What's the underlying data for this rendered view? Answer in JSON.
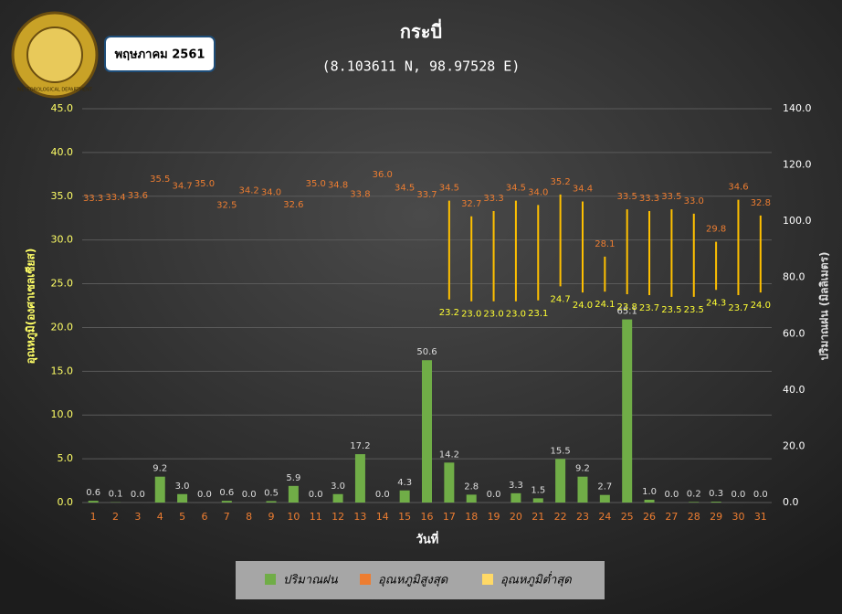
{
  "logo_text": "METEOROLOGICAL DEPARTMENT",
  "month_label": "พฤษภาคม 2561",
  "chart_data": {
    "type": "bar-hilo",
    "title": "กระบี่",
    "subtitle": "(8.103611 N, 98.97528 E)",
    "x_label": "วันที่",
    "y_label": "อุณหภูมิ(องศาเซลเซียส)",
    "y2_label": "ปริมาณฝน (มิลลิเมตร)",
    "categories": [
      "1",
      "2",
      "3",
      "4",
      "5",
      "6",
      "7",
      "8",
      "9",
      "10",
      "11",
      "12",
      "13",
      "14",
      "15",
      "16",
      "17",
      "18",
      "19",
      "20",
      "21",
      "22",
      "23",
      "24",
      "25",
      "26",
      "27",
      "28",
      "29",
      "30",
      "31"
    ],
    "ylim": [
      0,
      45
    ],
    "yticks": [
      {
        "value": 0,
        "label": "0.0"
      },
      {
        "value": 5,
        "label": "5.0"
      },
      {
        "value": 10,
        "label": "10.0"
      },
      {
        "value": 15,
        "label": "15.0"
      },
      {
        "value": 20,
        "label": "20.0"
      },
      {
        "value": 25,
        "label": "25.0"
      },
      {
        "value": 30,
        "label": "30.0"
      },
      {
        "value": 35,
        "label": "35.0"
      },
      {
        "value": 40,
        "label": "40.0"
      },
      {
        "value": 45,
        "label": "45.0"
      }
    ],
    "y2lim": [
      0,
      140
    ],
    "y2ticks": [
      {
        "value": 0,
        "label": "0.0"
      },
      {
        "value": 20,
        "label": "20.0"
      },
      {
        "value": 40,
        "label": "40.0"
      },
      {
        "value": 60,
        "label": "60.0"
      },
      {
        "value": 80,
        "label": "80.0"
      },
      {
        "value": 100,
        "label": "100.0"
      },
      {
        "value": 120,
        "label": "120.0"
      },
      {
        "value": 140,
        "label": "140.0"
      }
    ],
    "grid": true,
    "series": [
      {
        "name": "ปริมาณฝน",
        "color": "#70ad47",
        "axis": "y2",
        "values": [
          0.6,
          0.1,
          0.0,
          9.2,
          3.0,
          0.0,
          0.6,
          0.0,
          0.5,
          5.9,
          0.0,
          3.0,
          17.2,
          0.0,
          4.3,
          50.6,
          14.2,
          2.8,
          0.0,
          3.3,
          1.5,
          15.5,
          9.2,
          2.7,
          65.1,
          1.0,
          0.0,
          0.2,
          0.3,
          0.0,
          0.0
        ],
        "value_labels": [
          "0.6",
          "0.1",
          "0.0",
          "9.2",
          "3.0",
          "0.0",
          "0.6",
          "0.0",
          "0.5",
          "5.9",
          "0.0",
          "3.0",
          "17.2",
          "0.0",
          "4.3",
          "50.6",
          "14.2",
          "2.8",
          "0.0",
          "3.3",
          "1.5",
          "15.5",
          "9.2",
          "2.7",
          "65.1",
          "1.0",
          "0.0",
          "0.2",
          "0.3",
          "0.0",
          "0.0"
        ]
      },
      {
        "name": "อุณหภูมิสูงสุด",
        "color": "#ed7d31",
        "values": [
          33.3,
          33.4,
          33.6,
          35.5,
          34.7,
          35.0,
          32.5,
          34.2,
          34.0,
          32.6,
          35.0,
          34.8,
          33.8,
          36.0,
          34.5,
          33.7,
          34.5,
          32.7,
          33.3,
          34.5,
          34.0,
          35.2,
          34.4,
          28.1,
          33.5,
          33.3,
          33.5,
          33.0,
          29.8,
          34.6,
          32.8
        ],
        "value_labels": [
          "33.3",
          "33.4",
          "33.6",
          "35.5",
          "34.7",
          "35.0",
          "32.5",
          "34.2",
          "34.0",
          "32.6",
          "35.0",
          "34.8",
          "33.8",
          "36.0",
          "34.5",
          "33.7",
          "34.5",
          "32.7",
          "33.3",
          "34.5",
          "34.0",
          "35.2",
          "34.4",
          "28.1",
          "33.5",
          "33.3",
          "33.5",
          "33.0",
          "29.8",
          "34.6",
          "32.8"
        ]
      },
      {
        "name": "อุณหภูมิต่ำสุด",
        "color": "#ffd966",
        "values": [
          null,
          null,
          null,
          null,
          null,
          null,
          null,
          null,
          null,
          null,
          null,
          null,
          null,
          null,
          null,
          null,
          23.2,
          23.0,
          23.0,
          23.0,
          23.1,
          24.7,
          24.0,
          24.1,
          23.8,
          23.7,
          23.5,
          23.5,
          24.3,
          23.7,
          24.0
        ],
        "value_labels": [
          null,
          null,
          null,
          null,
          null,
          null,
          null,
          null,
          null,
          null,
          null,
          null,
          null,
          null,
          null,
          null,
          "23.2",
          "23.0",
          "23.0",
          "23.0",
          "23.1",
          "24.7",
          "24.0",
          "24.1",
          "23.8",
          "23.7",
          "23.5",
          "23.5",
          "24.3",
          "23.7",
          "24.0"
        ]
      }
    ]
  }
}
